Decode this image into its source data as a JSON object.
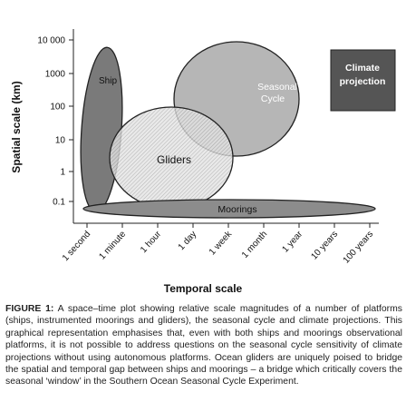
{
  "figure": {
    "ylabel": "Spatial scale (km)",
    "xlabel": "Temporal scale",
    "y_ticks": [
      "10 000",
      "1000",
      "100",
      "10",
      "1",
      "0.1"
    ],
    "x_ticks": [
      "1 second",
      "1 minute",
      "1 hour",
      "1 day",
      "1 week",
      "1 month",
      "1 year",
      "10 years",
      "100 years"
    ],
    "regions": {
      "ship": "Ship",
      "gliders": "Gliders",
      "seasonal_line1": "Seasonal",
      "seasonal_line2": "Cycle",
      "moorings": "Moorings",
      "climate_line1": "Climate",
      "climate_line2": "projection"
    },
    "colors": {
      "ship": "#7a7a7a",
      "seasonal": "#a9a9a9",
      "moorings": "#8c8c8c",
      "climate": "#555555"
    }
  },
  "caption": {
    "label": "FIGURE 1:",
    "text": "A space–time plot showing relative scale magnitudes of a number of platforms (ships, instrumented moorings and gliders), the seasonal cycle and climate projections. This graphical representation emphasises that, even with both ships and moorings observational platforms, it is not possible to address questions on the seasonal cycle sensitivity of climate projections without using autonomous platforms. Ocean gliders are uniquely poised to bridge the spatial and temporal gap between ships and moorings – a bridge which critically covers the seasonal ‘window’ in the Southern Ocean Seasonal Cycle Experiment."
  }
}
